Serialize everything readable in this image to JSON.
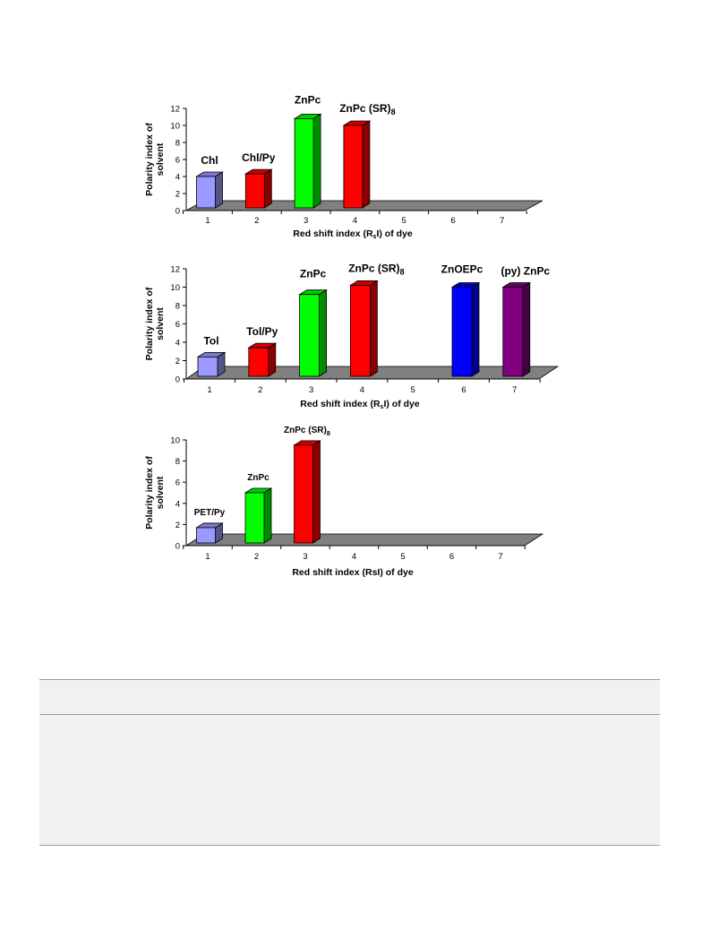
{
  "chart_data": [
    {
      "type": "bar",
      "categories": [
        "1",
        "2",
        "3",
        "4",
        "5",
        "6",
        "7"
      ],
      "values": [
        4,
        4.3,
        10.8,
        10,
        null,
        null,
        null
      ],
      "bar_labels": [
        "Chl",
        "Chl/Py",
        "ZnPc",
        "ZnPc (SR)",
        "",
        "",
        ""
      ],
      "bar_label_subscripts": [
        "",
        "",
        "",
        "8",
        "",
        "",
        ""
      ],
      "colors": [
        "#9999ff",
        "#ff0000",
        "#00ff00",
        "#ff0000",
        "",
        "",
        ""
      ],
      "ylabel": "Polarity index of solvent",
      "xlabel": "Red shift index (R",
      "xlabel_sub": "s",
      "xlabel_tail": "I) of dye",
      "ylim": [
        0,
        12
      ],
      "yticks": [
        "0",
        "2",
        "4",
        "6",
        "8",
        "10",
        "12"
      ],
      "grid": false
    },
    {
      "type": "bar",
      "categories": [
        "1",
        "2",
        "3",
        "4",
        "5",
        "6",
        "7"
      ],
      "values": [
        2.4,
        3.4,
        9.2,
        10.2,
        null,
        10,
        10
      ],
      "bar_labels": [
        "Tol",
        "Tol/Py",
        "ZnPc",
        "ZnPc (SR)",
        "",
        "ZnOEPc",
        "(py) ZnPc"
      ],
      "bar_label_subscripts": [
        "",
        "",
        "",
        "8",
        "",
        "",
        ""
      ],
      "colors": [
        "#9999ff",
        "#ff0000",
        "#00ff00",
        "#ff0000",
        "",
        "#0000ff",
        "#800080"
      ],
      "ylabel": "Polarity index of solvent",
      "xlabel": "Red shift index (R",
      "xlabel_sub": "s",
      "xlabel_tail": "I) of dye",
      "ylim": [
        0,
        12
      ],
      "yticks": [
        "0",
        "2",
        "4",
        "6",
        "8",
        "10",
        "12"
      ],
      "grid": false
    },
    {
      "type": "bar",
      "categories": [
        "1",
        "2",
        "3",
        "4",
        "5",
        "6",
        "7"
      ],
      "values": [
        1.7,
        5,
        9.5,
        null,
        null,
        null,
        null
      ],
      "bar_labels": [
        "PET/Py",
        "ZnPc",
        "ZnPc (SR)",
        "",
        "",
        "",
        ""
      ],
      "bar_label_subscripts": [
        "",
        "",
        "8",
        "",
        "",
        "",
        ""
      ],
      "colors": [
        "#9999ff",
        "#00ff00",
        "#ff0000",
        "",
        "",
        "",
        ""
      ],
      "ylabel": "Polarity index of solvent",
      "xlabel": "Red shift index (RsI) of dye",
      "xlabel_sub": "",
      "xlabel_tail": "",
      "ylim": [
        0,
        10
      ],
      "yticks": [
        "0",
        "2",
        "4",
        "6",
        "8",
        "10"
      ],
      "grid": false
    }
  ]
}
